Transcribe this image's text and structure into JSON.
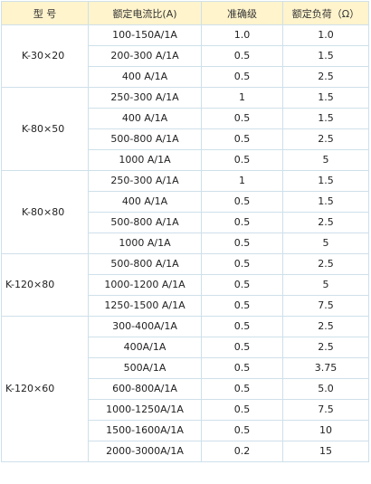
{
  "headers": [
    "型 号",
    "额定电流比(A)",
    "准确级",
    "额定负荷（Ω）"
  ],
  "groups": [
    {
      "model": "K-30×20",
      "rows": [
        [
          "100-150A/1A",
          "1.0",
          "1.0"
        ],
        [
          "200-300 A/1A",
          "0.5",
          "1.5"
        ],
        [
          "400 A/1A",
          "0.5",
          "2.5"
        ]
      ]
    },
    {
      "model": "K-80×50",
      "rows": [
        [
          "250-300 A/1A",
          "1",
          "1.5"
        ],
        [
          "400 A/1A",
          "0.5",
          "1.5"
        ],
        [
          "500-800 A/1A",
          "0.5",
          "2.5"
        ],
        [
          "1000 A/1A",
          "0.5",
          "5"
        ]
      ]
    },
    {
      "model": "K-80×80",
      "rows": [
        [
          "250-300 A/1A",
          "1",
          "1.5"
        ],
        [
          "400 A/1A",
          "0.5",
          "1.5"
        ],
        [
          "500-800 A/1A",
          "0.5",
          "2.5"
        ],
        [
          "1000 A/1A",
          "0.5",
          "5"
        ]
      ]
    },
    {
      "model": "K-120×80",
      "rows": [
        [
          "500-800 A/1A",
          "0.5",
          "2.5"
        ],
        [
          "1000-1200 A/1A",
          "0.5",
          "5"
        ],
        [
          "1250-1500 A/1A",
          "0.5",
          "7.5"
        ]
      ]
    },
    {
      "model": "K-120×60",
      "rows": [
        [
          "300-400A/1A",
          "0.5",
          "2.5"
        ],
        [
          "400A/1A",
          "0.5",
          "2.5"
        ],
        [
          "500A/1A",
          "0.5",
          "3.75"
        ],
        [
          "600-800A/1A",
          "0.5",
          "5.0"
        ],
        [
          "1000-1250A/1A",
          "0.5",
          "7.5"
        ],
        [
          "1500-1600A/1A",
          "0.5",
          "10"
        ],
        [
          "2000-3000A/1A",
          "0.2",
          "15"
        ]
      ]
    }
  ]
}
